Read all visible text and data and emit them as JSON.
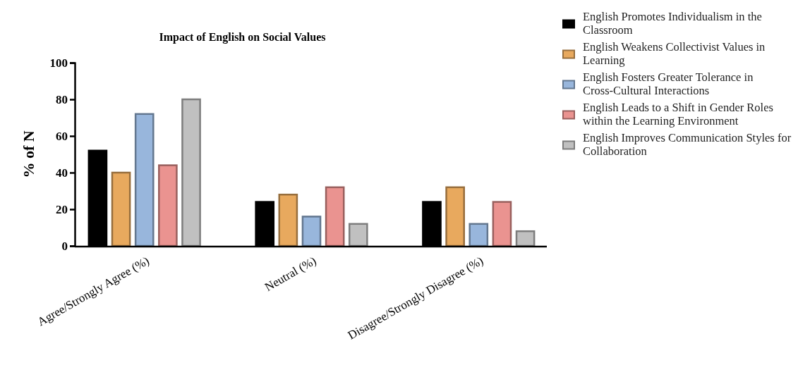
{
  "chart_data": {
    "type": "bar",
    "title": "Impact of English on Social Values",
    "ylabel": "% of N",
    "categories": [
      "Agree/Strongly Agree (%)",
      "Neutral (%)",
      "Disagree/Strongly Disagree (%)"
    ],
    "series": [
      {
        "name": "English Promotes Individualism in the Classroom",
        "color": "#000000",
        "values": [
          52,
          24,
          24
        ]
      },
      {
        "name": "English Weakens Collectivist Values in Learning",
        "color": "#e8a95e",
        "values": [
          40,
          28,
          32
        ]
      },
      {
        "name": "English Fosters Greater Tolerance in Cross-Cultural Interactions",
        "color": "#98b6dc",
        "values": [
          72,
          16,
          12
        ]
      },
      {
        "name": "English Leads to a Shift in Gender Roles within the Learning Environment",
        "color": "#ea9390",
        "values": [
          44,
          32,
          24
        ]
      },
      {
        "name": "English Improves Communication Styles for Collaboration",
        "color": "#c0c0c0",
        "values": [
          80,
          12,
          8
        ]
      }
    ],
    "ylim": [
      0,
      100
    ],
    "yticks": [
      0,
      20,
      40,
      60,
      80,
      100
    ],
    "legend": "right"
  }
}
